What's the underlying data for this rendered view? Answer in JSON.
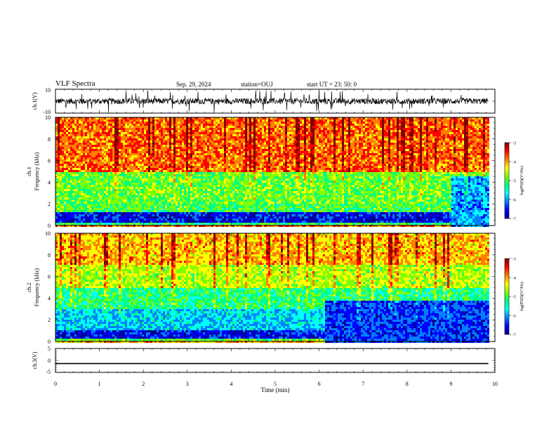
{
  "header": {
    "title": "VLF Spectra",
    "date": "Sep. 29, 2024",
    "station": "station=OUJ",
    "start_ut": "start UT =  23: 50: 0"
  },
  "colors": {
    "jet": [
      "#00008f",
      "#0000ff",
      "#0080ff",
      "#00ffff",
      "#00ff80",
      "#80ff00",
      "#ffff00",
      "#ff8000",
      "#ff0000",
      "#800000"
    ]
  },
  "chart_data": [
    {
      "type": "line",
      "id": "ch1-waveform",
      "ylabel": "ch.1(V)",
      "xlim": [
        0,
        10
      ],
      "ylim": [
        -10,
        10
      ],
      "y_ticks": [
        "10",
        "-10"
      ],
      "x_data_end": 9.85,
      "baseline": 0,
      "description_values": {
        "median": 0,
        "typical_min": -5,
        "typical_max": 4
      }
    },
    {
      "type": "heatmap",
      "id": "ch1-spectrogram",
      "ylabel": "Frequency (kHz)",
      "ylabel_channel": "ch.1",
      "xlim": [
        0,
        10
      ],
      "ylim": [
        0,
        10
      ],
      "y_ticks": [
        "0",
        "2",
        "4",
        "6",
        "8",
        "10"
      ],
      "x_data_end": 9.85,
      "colorbar": {
        "label": "log(PSD)(V²/Hz)",
        "ticks": [
          "-3",
          "-4",
          "-5",
          "-6",
          "-7"
        ],
        "range": [
          -7,
          -3
        ]
      },
      "bands": [
        {
          "f": [
            0,
            0.3
          ],
          "v": -5.2
        },
        {
          "f": [
            0.3,
            1.2
          ],
          "v": -6.6
        },
        {
          "f": [
            1.2,
            2.0
          ],
          "v": -5.0
        },
        {
          "f": [
            2.0,
            5.0
          ],
          "v": -4.9
        },
        {
          "f": [
            5.0,
            10.0
          ],
          "v": -3.8
        }
      ],
      "late_change": {
        "t_start": 9.0,
        "f_max": 4.5,
        "v": -6.0
      }
    },
    {
      "type": "heatmap",
      "id": "ch2-spectrogram",
      "ylabel": "Frequency (kHz)",
      "ylabel_channel": "ch.2",
      "xlim": [
        0,
        10
      ],
      "ylim": [
        0,
        10
      ],
      "y_ticks": [
        "0",
        "2",
        "4",
        "6",
        "8",
        "10"
      ],
      "x_data_end": 9.85,
      "colorbar": {
        "label": "log(PSD)(V²/Hz)",
        "ticks": [
          "-3",
          "-4",
          "-5",
          "-6",
          "-7"
        ],
        "range": [
          -7,
          -3
        ]
      },
      "bands": [
        {
          "f": [
            0,
            0.3
          ],
          "v": -5.0
        },
        {
          "f": [
            0.3,
            1.0
          ],
          "v": -6.6
        },
        {
          "f": [
            1.0,
            3.0
          ],
          "v": -5.8
        },
        {
          "f": [
            3.0,
            5.0
          ],
          "v": -5.2
        },
        {
          "f": [
            5.0,
            7.0
          ],
          "v": -4.6
        },
        {
          "f": [
            7.0,
            10.0
          ],
          "v": -4.1
        }
      ],
      "late_change": {
        "t_start": 6.1,
        "f_max": 3.8,
        "v": -6.4
      }
    },
    {
      "type": "line",
      "id": "ch3-waveform",
      "ylabel": "ch.3(V)",
      "xlim": [
        0,
        10
      ],
      "ylim": [
        -5,
        5
      ],
      "y_ticks": [
        "5",
        "0",
        "-5"
      ],
      "x_data_end": 9.85,
      "constant_value": -1.3
    }
  ],
  "x_axis": {
    "label": "Time (min)",
    "ticks": [
      "0",
      "1",
      "2",
      "3",
      "4",
      "5",
      "6",
      "7",
      "8",
      "9",
      "10"
    ]
  }
}
